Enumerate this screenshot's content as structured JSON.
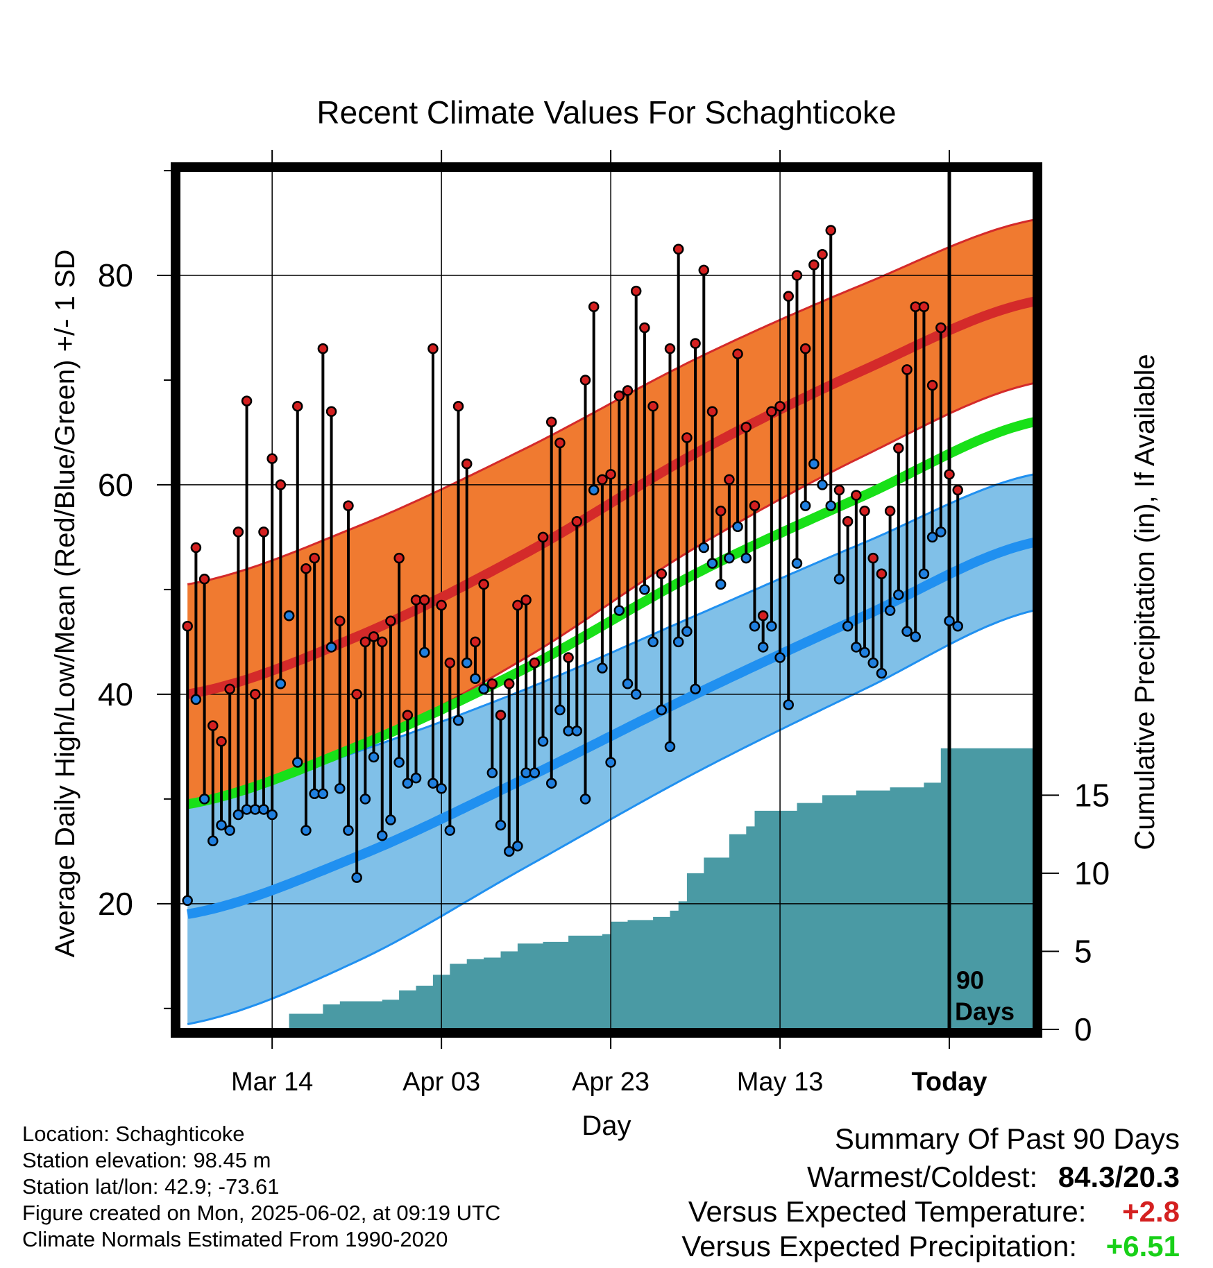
{
  "chart_data": {
    "type": "line",
    "title": "Recent Climate Values For Schaghticoke",
    "xlabel": "Day",
    "ylabel": "Average Daily High/Low/Mean (Red/Blue/Green) +/- 1 SD",
    "y2label": "Cumulative Precipitation (in), If Available",
    "ylim": [
      8,
      90
    ],
    "y2lim": [
      0,
      55
    ],
    "yticks": [
      "20",
      "40",
      "60",
      "80"
    ],
    "y2ticks": [
      "0",
      "5",
      "10",
      "15"
    ],
    "xticks": [
      "Mar 14",
      "Apr 03",
      "Apr 23",
      "May 13",
      "Today"
    ],
    "xtick_days": [
      11,
      31,
      51,
      71,
      91
    ],
    "xlim": [
      0,
      101
    ],
    "today_label": "90 Days",
    "grid": true,
    "colors": {
      "high_band": "#f07a30",
      "high_mean": "#d42a2a",
      "low_band": "#80c0e8",
      "low_mean": "#2090f0",
      "mean": "#18e018",
      "precip": "#4a9aa4",
      "high_dot": "#d42020",
      "low_dot": "#2080e0"
    },
    "normals": {
      "days": [
        1,
        21,
        41,
        61,
        81,
        101
      ],
      "high_mean": [
        40.0,
        45.5,
        53.5,
        63.0,
        71.0,
        77.5
      ],
      "high_sd": [
        10.5,
        10.5,
        10.0,
        9.0,
        8.2,
        7.8
      ],
      "low_mean": [
        19.0,
        24.5,
        32.0,
        40.0,
        47.5,
        54.5
      ],
      "low_sd": [
        10.5,
        10.0,
        8.5,
        7.5,
        7.0,
        6.5
      ],
      "mean": [
        29.5,
        35.0,
        42.5,
        51.5,
        59.0,
        66.0
      ]
    },
    "daily": {
      "highs": [
        46.5,
        54.0,
        51.0,
        37.0,
        35.5,
        40.5,
        55.5,
        68.0,
        40.0,
        55.5,
        62.5,
        60.0,
        47.5,
        67.5,
        52.0,
        53.0,
        73.0,
        67.0,
        47.0,
        58.0,
        40.0,
        45.0,
        45.5,
        45.0,
        47.0,
        53.0,
        38.0,
        49.0,
        49.0,
        73.0,
        48.5,
        43.0,
        67.5,
        62.0,
        45.0,
        50.5,
        41.0,
        38.0,
        41.0,
        48.5,
        49.0,
        43.0,
        55.0,
        66.0,
        64.0,
        43.5,
        56.5,
        70.0,
        77.0,
        60.5,
        61.0,
        68.5,
        69.0,
        78.5,
        75.0,
        67.5,
        51.5,
        73.0,
        82.5,
        64.5,
        73.5,
        80.5,
        67.0,
        57.5,
        60.5,
        72.5,
        65.5,
        58.0,
        47.5,
        67.0,
        67.5,
        78.0,
        80.0,
        73.0,
        81.0,
        82.0,
        84.3,
        59.5,
        56.5,
        59.0,
        57.5,
        53.0,
        51.5,
        57.5,
        63.5,
        71.0,
        77.0,
        77.0,
        69.5,
        75.0,
        61.0,
        59.5
      ],
      "lows": [
        20.3,
        39.5,
        30.0,
        26.0,
        27.5,
        27.0,
        28.5,
        29.0,
        29.0,
        29.0,
        28.5,
        41.0,
        47.5,
        33.5,
        27.0,
        30.5,
        30.5,
        44.5,
        31.0,
        27.0,
        22.5,
        30.0,
        34.0,
        26.5,
        28.0,
        33.5,
        31.5,
        32.0,
        44.0,
        31.5,
        31.0,
        27.0,
        37.5,
        43.0,
        41.5,
        40.5,
        32.5,
        27.5,
        25.0,
        25.5,
        32.5,
        32.5,
        35.5,
        31.5,
        38.5,
        36.5,
        36.5,
        30.0,
        59.5,
        42.5,
        33.5,
        48.0,
        41.0,
        40.0,
        50.0,
        45.0,
        38.5,
        35.0,
        45.0,
        46.0,
        40.5,
        54.0,
        52.5,
        50.5,
        53.0,
        56.0,
        53.0,
        46.5,
        44.5,
        46.5,
        43.5,
        39.0,
        52.5,
        58.0,
        62.0,
        60.0,
        58.0,
        51.0,
        46.5,
        44.5,
        44.0,
        43.0,
        42.0,
        48.0,
        49.5,
        46.0,
        45.5,
        51.5,
        55.0,
        55.5,
        47.0,
        46.5
      ]
    },
    "precip_steps": [
      [
        12,
        0.0
      ],
      [
        13,
        1.0
      ],
      [
        16,
        1.0
      ],
      [
        17,
        1.6
      ],
      [
        19,
        1.8
      ],
      [
        24,
        1.9
      ],
      [
        26,
        2.5
      ],
      [
        28,
        2.8
      ],
      [
        30,
        3.5
      ],
      [
        32,
        4.2
      ],
      [
        34,
        4.5
      ],
      [
        36,
        4.6
      ],
      [
        38,
        5.0
      ],
      [
        40,
        5.5
      ],
      [
        43,
        5.6
      ],
      [
        46,
        6.0
      ],
      [
        50,
        6.1
      ],
      [
        51,
        6.9
      ],
      [
        53,
        7.0
      ],
      [
        56,
        7.2
      ],
      [
        58,
        7.6
      ],
      [
        59,
        8.2
      ],
      [
        60,
        10.0
      ],
      [
        62,
        11.0
      ],
      [
        65,
        12.5
      ],
      [
        67,
        13.0
      ],
      [
        68,
        14.0
      ],
      [
        73,
        14.5
      ],
      [
        76,
        15.0
      ],
      [
        80,
        15.3
      ],
      [
        84,
        15.5
      ],
      [
        88,
        15.8
      ],
      [
        90,
        18.0
      ],
      [
        100,
        18.0
      ]
    ]
  },
  "info": {
    "location": "Location: Schaghticoke",
    "elevation": "Station elevation: 98.45 m",
    "latlon": "Station lat/lon: 42.9; -73.61",
    "created": "Figure created on Mon, 2025-06-02, at 09:19 UTC",
    "normals": "Climate Normals Estimated From 1990-2020"
  },
  "summary": {
    "title": "Summary Of Past 90 Days",
    "warm_label": "Warmest/Coldest:",
    "warm_value": "84.3/20.3",
    "temp_label": "Versus Expected Temperature:",
    "temp_value": "+2.8",
    "temp_color": "#d42020",
    "precip_label": "Versus Expected Precipitation:",
    "precip_value": "+6.51",
    "precip_color": "#18d018"
  }
}
